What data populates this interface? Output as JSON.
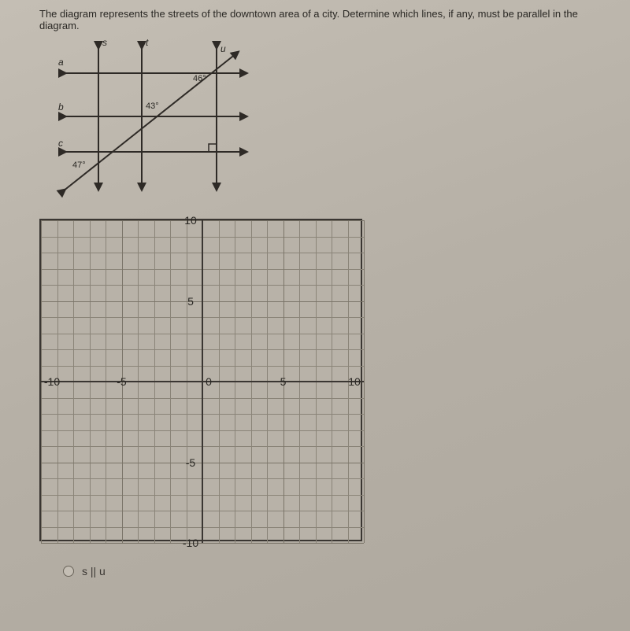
{
  "problem": {
    "text": "The diagram represents the streets of the downtown area of a city. Determine which lines, if any, must be parallel in the diagram."
  },
  "streets": {
    "labels": {
      "s": "s",
      "t": "t",
      "u": "u",
      "a": "a",
      "b": "b",
      "c": "c"
    },
    "angles": {
      "top_right": "46°",
      "mid": "43°",
      "bottom_left": "47°"
    },
    "line_color": "#2e2a26",
    "line_width": 2
  },
  "grid": {
    "type": "coordinate-plane",
    "xlim": [
      -10,
      10
    ],
    "ylim": [
      -10,
      10
    ],
    "major_step": 5,
    "minor_step": 1,
    "x_ticks": [
      {
        "v": -10,
        "label": "-10"
      },
      {
        "v": -5,
        "label": "-5"
      },
      {
        "v": 0,
        "label": "0"
      },
      {
        "v": 5,
        "label": "5"
      },
      {
        "v": 10,
        "label": "10"
      }
    ],
    "y_ticks": [
      {
        "v": 10,
        "label": "10"
      },
      {
        "v": 5,
        "label": "5"
      },
      {
        "v": -5,
        "label": "-5"
      },
      {
        "v": -10,
        "label": "-10"
      }
    ],
    "background_color": "#b8b2a8",
    "minor_grid_color": "#8a8478",
    "major_grid_color": "#7a7468",
    "axis_color": "#3a3632",
    "border_color": "#3a3632"
  },
  "answers": {
    "option_a": "s || u"
  }
}
